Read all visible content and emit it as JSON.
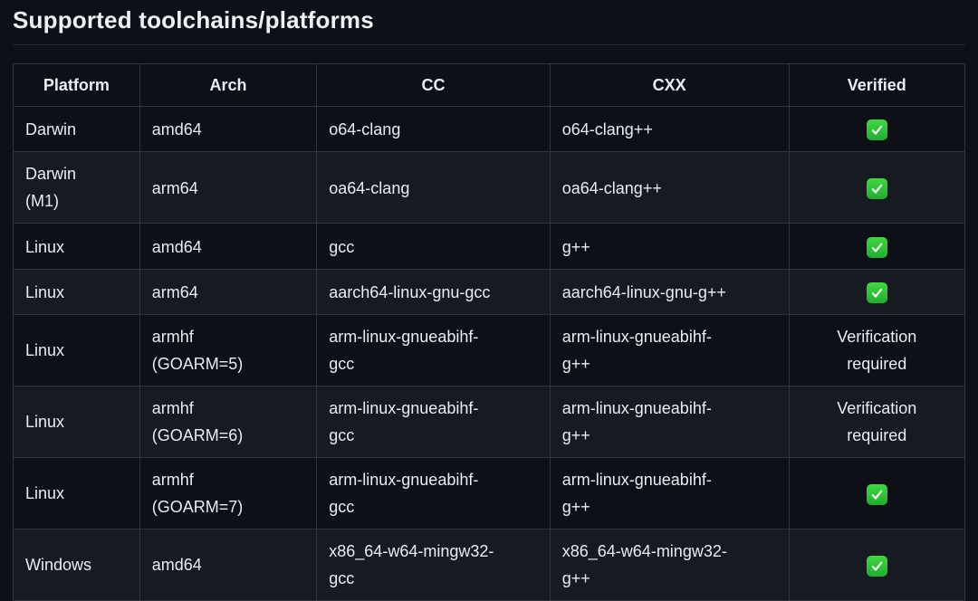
{
  "page": {
    "title": "Supported toolchains/platforms"
  },
  "colors": {
    "background": "#0d1117",
    "row_alt_background": "#161b22",
    "border": "#30363d",
    "text": "#e6edf3",
    "check_green": "#2bbf38"
  },
  "table": {
    "columns": [
      "Platform",
      "Arch",
      "CC",
      "CXX",
      "Verified"
    ],
    "verified_icon_name": "green-check-emoji",
    "rows": [
      {
        "platform": "Darwin",
        "arch": "amd64",
        "cc": "o64-clang",
        "cxx": "o64-clang++",
        "verified": "✅"
      },
      {
        "platform": "Darwin (M1)",
        "arch": "arm64",
        "cc": "oa64-clang",
        "cxx": "oa64-clang++",
        "verified": "✅"
      },
      {
        "platform": "Linux",
        "arch": "amd64",
        "cc": "gcc",
        "cxx": "g++",
        "verified": "✅"
      },
      {
        "platform": "Linux",
        "arch": "arm64",
        "cc": "aarch64-linux-gnu-gcc",
        "cxx": "aarch64-linux-gnu-g++",
        "verified": "✅"
      },
      {
        "platform": "Linux",
        "arch": "armhf (GOARM=5)",
        "cc": "arm-linux-gnueabihf-gcc",
        "cxx": "arm-linux-gnueabihf-g++",
        "verified": "Verification required"
      },
      {
        "platform": "Linux",
        "arch": "armhf (GOARM=6)",
        "cc": "arm-linux-gnueabihf-gcc",
        "cxx": "arm-linux-gnueabihf-g++",
        "verified": "Verification required"
      },
      {
        "platform": "Linux",
        "arch": "armhf (GOARM=7)",
        "cc": "arm-linux-gnueabihf-gcc",
        "cxx": "arm-linux-gnueabihf-g++",
        "verified": "✅"
      },
      {
        "platform": "Windows",
        "arch": "amd64",
        "cc": "x86_64-w64-mingw32-gcc",
        "cxx": "x86_64-w64-mingw32-g++",
        "verified": "✅"
      }
    ]
  }
}
